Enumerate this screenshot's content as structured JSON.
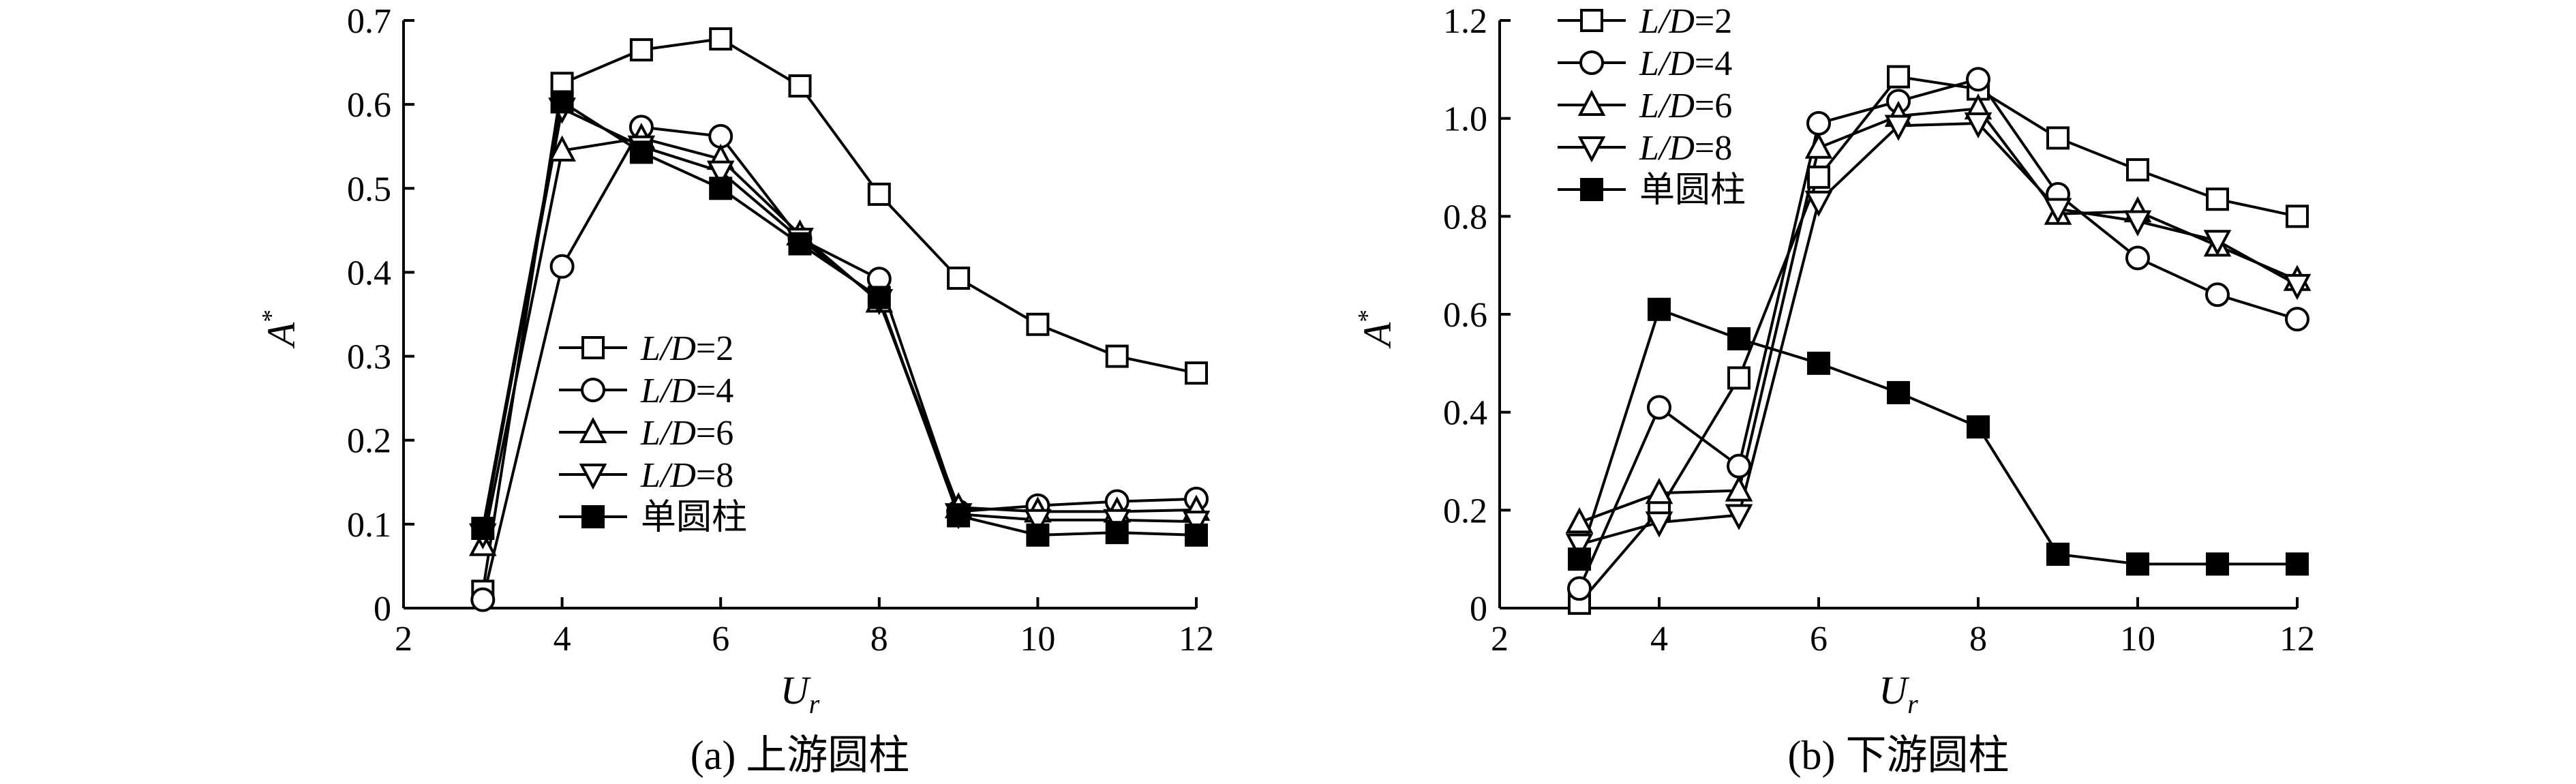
{
  "chart_data": [
    {
      "type": "line",
      "title": "",
      "caption": "(a) 上游圆柱",
      "xlabel": "U",
      "xlabel_sub": "r",
      "ylabel": "A",
      "ylabel_sup": "*",
      "xlim": [
        2,
        12
      ],
      "ylim": [
        0,
        0.7
      ],
      "xticks": [
        2,
        4,
        6,
        8,
        10,
        12
      ],
      "yticks": [
        0,
        0.1,
        0.2,
        0.3,
        0.4,
        0.5,
        0.6,
        0.7
      ],
      "ytick_labels": [
        "0",
        "0.1",
        "0.2",
        "0.3",
        "0.4",
        "0.5",
        "0.6",
        "0.7"
      ],
      "grid": false,
      "legend_position": "center-right",
      "x": [
        3,
        4,
        5,
        6,
        7,
        8,
        9,
        10,
        11,
        12
      ],
      "series": [
        {
          "name": "L/D=2",
          "name_italic": "L/D",
          "name_rest": "=2",
          "marker": "square-open",
          "values": [
            0.02,
            0.625,
            0.665,
            0.678,
            0.622,
            0.493,
            0.393,
            0.338,
            0.3,
            0.28
          ]
        },
        {
          "name": "L/D=4",
          "name_italic": "L/D",
          "name_rest": "=4",
          "marker": "circle-open",
          "values": [
            0.01,
            0.407,
            0.573,
            0.562,
            0.44,
            0.392,
            0.115,
            0.122,
            0.127,
            0.13
          ]
        },
        {
          "name": "L/D=6",
          "name_italic": "L/D",
          "name_rest": "=6",
          "marker": "triangle-up-open",
          "values": [
            0.075,
            0.545,
            0.56,
            0.535,
            0.445,
            0.365,
            0.12,
            0.115,
            0.115,
            0.117
          ]
        },
        {
          "name": "L/D=8",
          "name_italic": "L/D",
          "name_rest": "=8",
          "marker": "triangle-down-open",
          "values": [
            0.088,
            0.595,
            0.55,
            0.52,
            0.44,
            0.367,
            0.112,
            0.105,
            0.105,
            0.103
          ]
        },
        {
          "name": "单圆柱",
          "name_italic": "",
          "name_rest": "单圆柱",
          "marker": "square-filled",
          "values": [
            0.095,
            0.603,
            0.543,
            0.5,
            0.434,
            0.37,
            0.11,
            0.087,
            0.09,
            0.087
          ]
        }
      ]
    },
    {
      "type": "line",
      "title": "",
      "caption": "(b) 下游圆柱",
      "xlabel": "U",
      "xlabel_sub": "r",
      "ylabel": "A",
      "ylabel_sup": "*",
      "xlim": [
        2,
        12
      ],
      "ylim": [
        0,
        1.2
      ],
      "xticks": [
        2,
        4,
        6,
        8,
        10,
        12
      ],
      "yticks": [
        0,
        0.2,
        0.4,
        0.6,
        0.8,
        1.0,
        1.2
      ],
      "ytick_labels": [
        "0",
        "0.2",
        "0.4",
        "0.6",
        "0.8",
        "1.0",
        "1.2"
      ],
      "grid": false,
      "legend_position": "top-left",
      "x": [
        3,
        4,
        5,
        6,
        7,
        8,
        9,
        10,
        11,
        12
      ],
      "series": [
        {
          "name": "L/D=2",
          "name_italic": "L/D",
          "name_rest": "=2",
          "marker": "square-open",
          "values": [
            0.01,
            0.2,
            0.47,
            0.88,
            1.085,
            1.06,
            0.96,
            0.895,
            0.835,
            0.8
          ]
        },
        {
          "name": "L/D=4",
          "name_italic": "L/D",
          "name_rest": "=4",
          "marker": "circle-open",
          "values": [
            0.04,
            0.41,
            0.29,
            0.99,
            1.035,
            1.08,
            0.845,
            0.715,
            0.64,
            0.59
          ]
        },
        {
          "name": "L/D=6",
          "name_italic": "L/D",
          "name_rest": "=6",
          "marker": "triangle-up-open",
          "values": [
            0.175,
            0.235,
            0.24,
            0.94,
            1.005,
            1.02,
            0.805,
            0.81,
            0.74,
            0.67
          ]
        },
        {
          "name": "L/D=8",
          "name_italic": "L/D",
          "name_rest": "=8",
          "marker": "triangle-down-open",
          "values": [
            0.13,
            0.175,
            0.19,
            0.83,
            0.985,
            0.99,
            0.815,
            0.79,
            0.75,
            0.66
          ]
        },
        {
          "name": "单圆柱",
          "name_italic": "",
          "name_rest": "单圆柱",
          "marker": "square-filled",
          "values": [
            0.1,
            0.61,
            0.55,
            0.5,
            0.44,
            0.37,
            0.11,
            0.09,
            0.09,
            0.09
          ]
        }
      ]
    }
  ]
}
